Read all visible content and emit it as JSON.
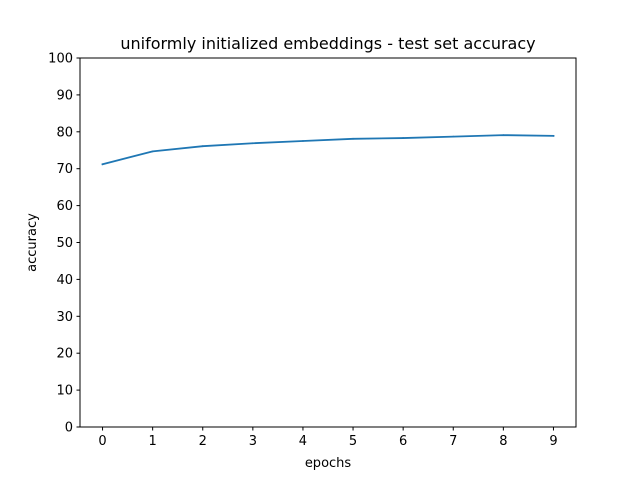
{
  "chart_data": {
    "type": "line",
    "title": "uniformly initialized embeddings - test set accuracy",
    "xlabel": "epochs",
    "ylabel": "accuracy",
    "x": [
      0,
      1,
      2,
      3,
      4,
      5,
      6,
      7,
      8,
      9
    ],
    "series": [
      {
        "values": [
          71.2,
          74.7,
          76.1,
          76.9,
          77.5,
          78.1,
          78.3,
          78.7,
          79.1,
          78.9
        ],
        "color": "#1f77b4"
      }
    ],
    "xlim": [
      -0.45,
      9.45
    ],
    "ylim": [
      0,
      100
    ],
    "xticks": [
      "0",
      "1",
      "2",
      "3",
      "4",
      "5",
      "6",
      "7",
      "8",
      "9"
    ],
    "yticks": [
      "0",
      "10",
      "20",
      "30",
      "40",
      "50",
      "60",
      "70",
      "80",
      "90",
      "100"
    ],
    "grid": false,
    "legend": "none"
  }
}
